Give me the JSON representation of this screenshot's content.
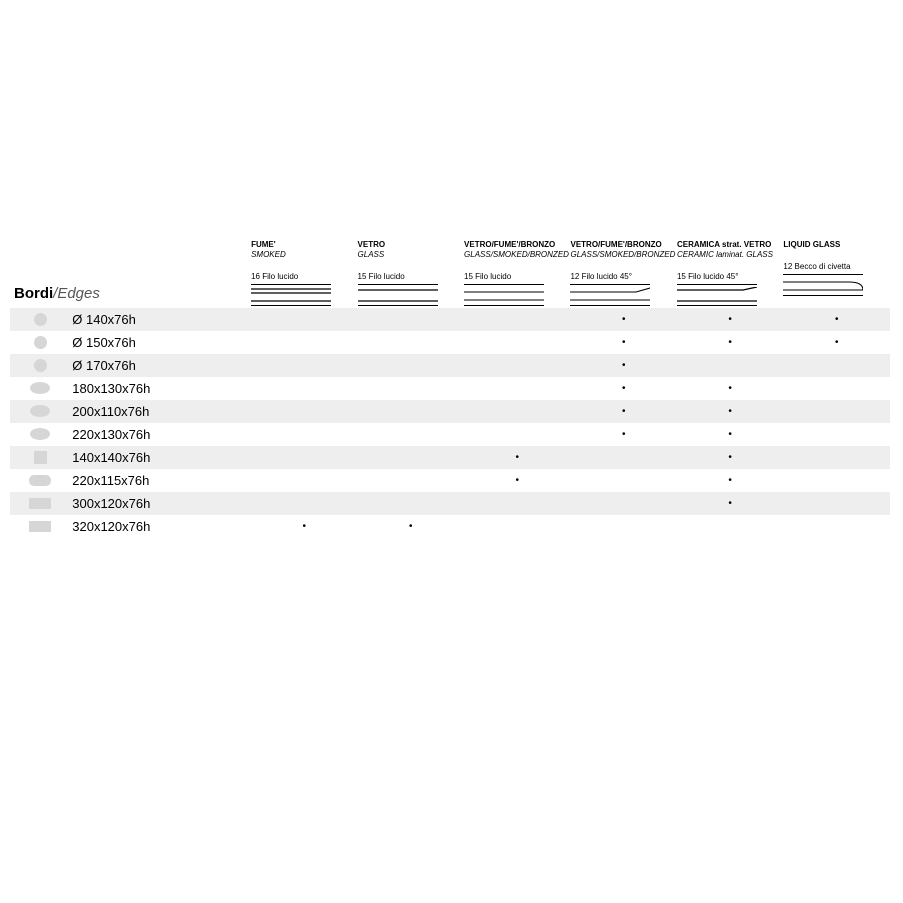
{
  "section_title_it": "Bordi",
  "section_title_en": "/Edges",
  "shape_color": "#d6d6d6",
  "stripe_color": "#eeeeee",
  "line_color": "#000000",
  "columns": [
    {
      "material_it": "FUME'",
      "material_en": "SMOKED",
      "edge_label": "16 Filo lucido",
      "edge_type": "double"
    },
    {
      "material_it": "VETRO",
      "material_en": "GLASS",
      "edge_label": "15 Filo lucido",
      "edge_type": "single"
    },
    {
      "material_it": "VETRO/FUME'/BRONZO",
      "material_en": "GLASS/SMOKED/BRONZED",
      "edge_label": "15 Filo lucido",
      "edge_type": "single-thin"
    },
    {
      "material_it": "VETRO/FUME'/BRONZO",
      "material_en": "GLASS/SMOKED/BRONZED",
      "edge_label": "12 Filo lucido 45°",
      "edge_type": "bevel-thin"
    },
    {
      "material_it": "CERAMICA strat. VETRO",
      "material_en": "CERAMIC laminat. GLASS",
      "edge_label": "15 Filo lucido 45°",
      "edge_type": "bevel"
    },
    {
      "material_it": "LIQUID GLASS",
      "material_en": "",
      "edge_label": "12 Becco di civetta",
      "edge_type": "bullnose"
    }
  ],
  "rows": [
    {
      "shape": "circle",
      "size": "Ø 140x76h",
      "dots": [
        false,
        false,
        false,
        true,
        true,
        true
      ]
    },
    {
      "shape": "circle",
      "size": "Ø 150x76h",
      "dots": [
        false,
        false,
        false,
        true,
        true,
        true
      ]
    },
    {
      "shape": "circle",
      "size": "Ø 170x76h",
      "dots": [
        false,
        false,
        false,
        true,
        false,
        false
      ]
    },
    {
      "shape": "oval",
      "size": "180x130x76h",
      "dots": [
        false,
        false,
        false,
        true,
        true,
        false
      ]
    },
    {
      "shape": "oval",
      "size": "200x110x76h",
      "dots": [
        false,
        false,
        false,
        true,
        true,
        false
      ]
    },
    {
      "shape": "oval",
      "size": "220x130x76h",
      "dots": [
        false,
        false,
        false,
        true,
        true,
        false
      ]
    },
    {
      "shape": "square",
      "size": "140x140x76h",
      "dots": [
        false,
        false,
        true,
        false,
        true,
        false
      ]
    },
    {
      "shape": "rounded-rect",
      "size": "220x115x76h",
      "dots": [
        false,
        false,
        true,
        false,
        true,
        false
      ]
    },
    {
      "shape": "rect",
      "size": "300x120x76h",
      "dots": [
        false,
        false,
        false,
        false,
        true,
        false
      ]
    },
    {
      "shape": "rect",
      "size": "320x120x76h",
      "dots": [
        true,
        true,
        false,
        false,
        false,
        false
      ]
    }
  ]
}
